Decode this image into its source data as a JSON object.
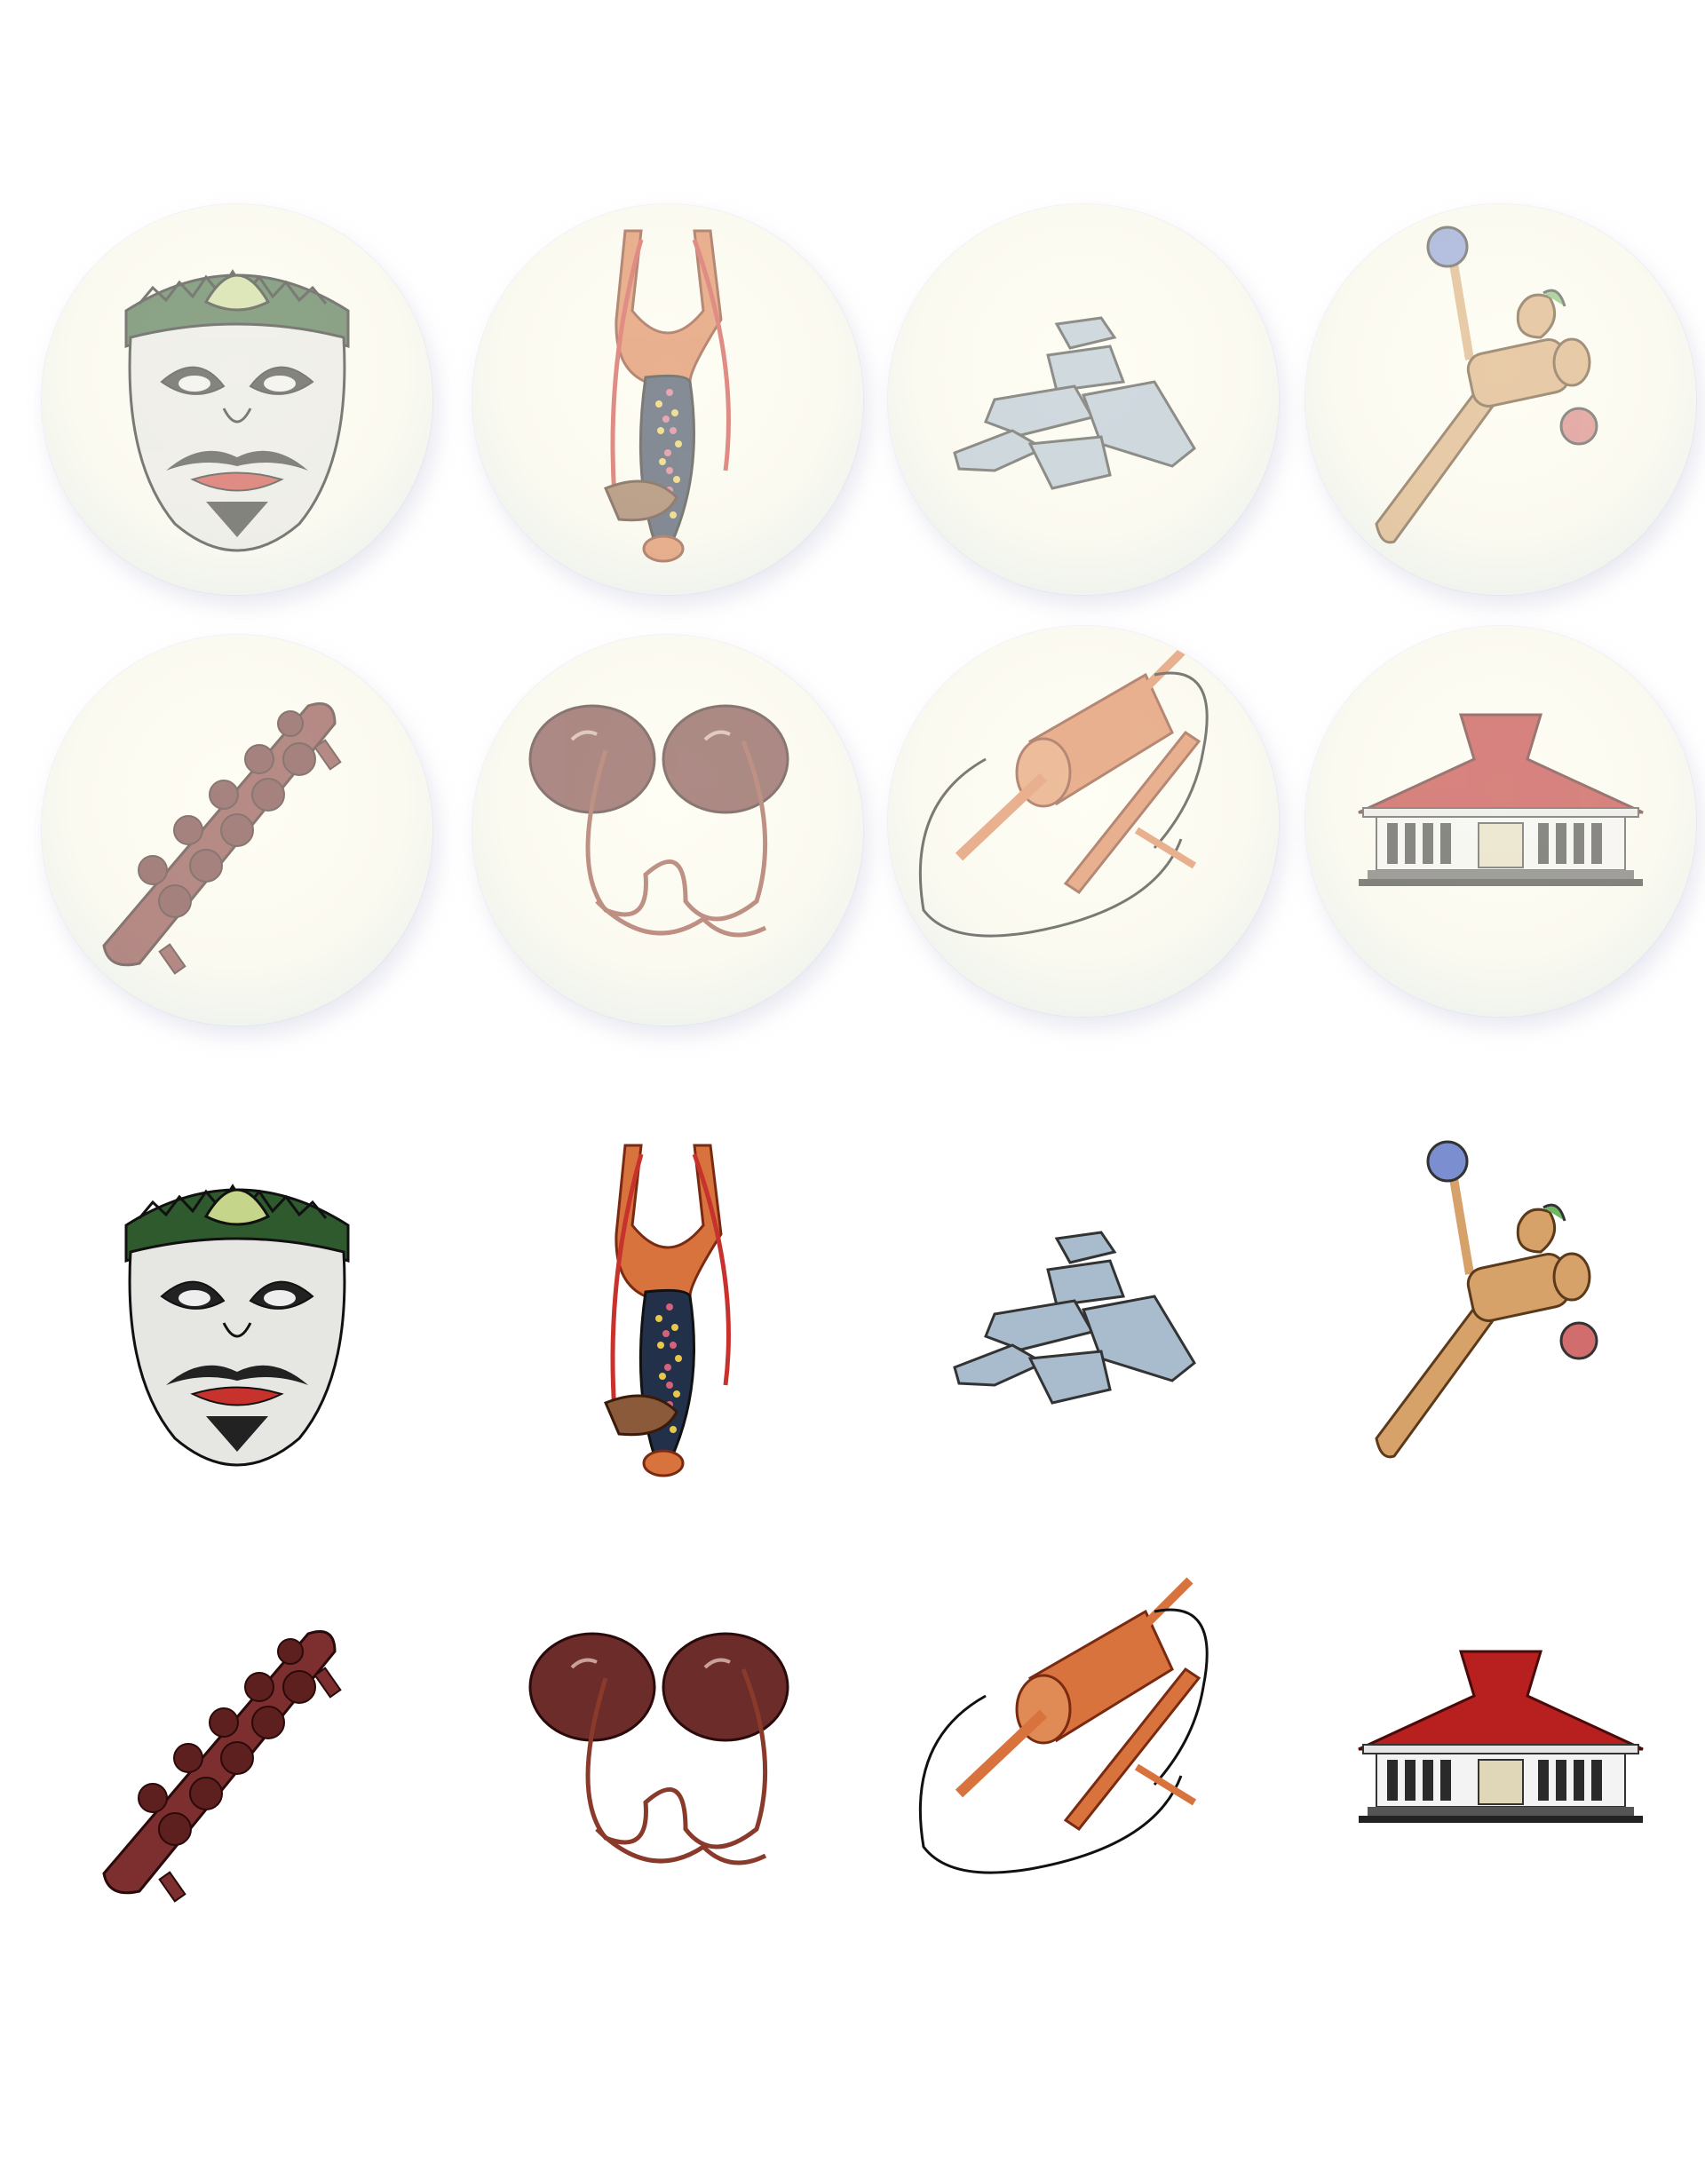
{
  "sheet": {
    "rows": [
      {
        "style": "bubble",
        "items": [
          "mask-icon",
          "slingshot-icon",
          "stones-icon",
          "wooden-toy-icon"
        ]
      },
      {
        "style": "bubble",
        "items": [
          "congklak-board-icon",
          "coconut-shell-stilts-icon",
          "thread-spinner-icon",
          "joglo-house-icon"
        ]
      },
      {
        "style": "plain",
        "items": [
          "mask-icon",
          "slingshot-icon",
          "stones-icon",
          "wooden-toy-icon"
        ]
      },
      {
        "style": "plain",
        "items": [
          "congklak-board-icon",
          "coconut-shell-stilts-icon",
          "thread-spinner-icon",
          "joglo-house-icon"
        ]
      }
    ]
  },
  "colors": {
    "background": "#ffffff",
    "bubble_tint": "#e3e0f0",
    "mask_green": "#2f5a2e",
    "mask_red": "#c8322d",
    "wood_orange": "#d8733e",
    "wood_tan": "#d6a26a",
    "stone_blue": "#a9bccd",
    "board_maroon": "#7c2f2e",
    "roof_red": "#b81f1f"
  }
}
